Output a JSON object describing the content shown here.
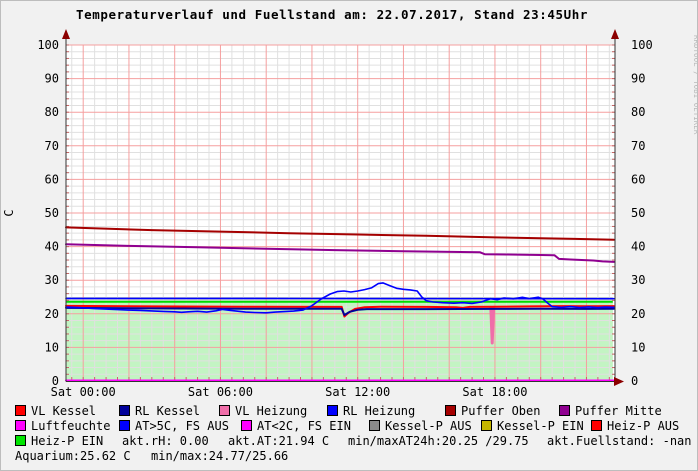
{
  "title": "Temperaturverlauf und Fuellstand am: 22.07.2017, Stand 23:45Uhr",
  "watermark": "RRDTOOL / TOBI OETIKER",
  "legend": {
    "rows": [
      {
        "items": [
          {
            "swatch": "#ff0000",
            "label": "VL Kessel"
          },
          {
            "swatch": "#00009a",
            "label": "RL Kessel"
          },
          {
            "swatch": "#f06ea9",
            "label": "VL Heizung"
          },
          {
            "swatch": "#0000ff",
            "label": "RL Heizung"
          },
          {
            "swatch": "#a50000",
            "label": "Puffer Oben"
          },
          {
            "swatch": "#8f0090",
            "label": "Puffer Mitte"
          }
        ]
      },
      {
        "items": [
          {
            "swatch": "#ff00ff",
            "label": "Luftfeuchte"
          },
          {
            "swatch": "#0000ff",
            "label": "AT>5C, FS AUS"
          },
          {
            "swatch": "#ff00ff",
            "label": "AT<2C, FS EIN"
          },
          {
            "swatch": "#8a8a8a",
            "label": "Kessel-P AUS"
          },
          {
            "swatch": "#c6b600",
            "label": "Kessel-P EIN"
          },
          {
            "swatch": "#ff0000",
            "label": "Heiz-P AUS"
          }
        ]
      },
      {
        "items": [
          {
            "swatch": "#00e400",
            "label": "Heiz-P EIN"
          },
          {
            "label": "akt.rH: 0.00"
          },
          {
            "label": "akt.AT:21.94 C"
          },
          {
            "label": "min/maxAT24h:20.25 /29.75"
          },
          {
            "label": "akt.Fuellstand: -nan"
          }
        ]
      },
      {
        "items": [
          {
            "label": "Aquarium:25.62 C"
          },
          {
            "label": "min/max:24.77/25.66"
          }
        ]
      }
    ]
  },
  "chart_data": {
    "type": "line",
    "title": "Temperaturverlauf und Fuellstand am: 22.07.2017, Stand 23:45Uhr",
    "ylabel": "C",
    "ylim": [
      0,
      100
    ],
    "y_major_step": 10,
    "y_minor_step": 2,
    "x_window_hours": [
      -0.75,
      23.25
    ],
    "x_major_step_hours": 2,
    "x_minor_step_hours": 0.5,
    "grid": true,
    "legend_position": "bottom",
    "x_tick_labels": [
      {
        "t": 0,
        "label": "Sat 00:00"
      },
      {
        "t": 6,
        "label": "Sat 06:00"
      },
      {
        "t": 12,
        "label": "Sat 12:00"
      },
      {
        "t": 18,
        "label": "Sat 18:00"
      }
    ],
    "areas": [
      {
        "name": "Kessel-P AUS",
        "color": "#cdd6cd",
        "top": 25.0,
        "x": [
          -0.75,
          23.15
        ]
      },
      {
        "name": "Heiz-P EIN",
        "color": "#c3f4c3",
        "top": 23.6,
        "x": [
          -0.75,
          23.15
        ],
        "edge_color": "#00dc00",
        "edge_width": 2
      }
    ],
    "series": [
      {
        "name": "Luftfeuchte",
        "color": "#ff00ff",
        "width": 2,
        "points": [
          [
            -0.75,
            0.15
          ],
          [
            23.2,
            0.15
          ]
        ]
      },
      {
        "name": "VL Heizung",
        "color": "#f06ea9",
        "width": 3,
        "points": [
          [
            17.82,
            21.9
          ],
          [
            17.88,
            11.3
          ],
          [
            17.94,
            21.9
          ]
        ]
      },
      {
        "name": "RL Heizung",
        "color": "#0000ff",
        "width": 1.6,
        "points": [
          [
            -0.75,
            24.58
          ],
          [
            10,
            24.55
          ],
          [
            23.2,
            24.5
          ]
        ]
      },
      {
        "name": "VL Kessel",
        "color": "#ff0000",
        "width": 2,
        "points": [
          [
            -0.75,
            22.35
          ],
          [
            3,
            22.2
          ],
          [
            7,
            22.1
          ],
          [
            11.3,
            22.05
          ],
          [
            11.42,
            19.2
          ],
          [
            11.6,
            20.3
          ],
          [
            11.9,
            21.5
          ],
          [
            12.3,
            21.95
          ],
          [
            13,
            22.1
          ],
          [
            15,
            22.05
          ],
          [
            16.3,
            21.95
          ],
          [
            16.6,
            21.75
          ],
          [
            16.9,
            22.05
          ],
          [
            18,
            22.1
          ],
          [
            19.5,
            22.2
          ],
          [
            21,
            22.3
          ],
          [
            22,
            22.25
          ],
          [
            23.2,
            22.3
          ]
        ]
      },
      {
        "name": "RL Kessel",
        "color": "#00009a",
        "width": 2,
        "points": [
          [
            -0.75,
            21.75
          ],
          [
            3,
            21.6
          ],
          [
            7,
            21.5
          ],
          [
            11.3,
            21.5
          ],
          [
            11.42,
            19.65
          ],
          [
            11.65,
            20.6
          ],
          [
            12,
            21.2
          ],
          [
            12.4,
            21.4
          ],
          [
            15,
            21.4
          ],
          [
            18,
            21.45
          ],
          [
            20,
            21.5
          ],
          [
            22,
            21.45
          ],
          [
            23.2,
            21.5
          ]
        ]
      },
      {
        "name": "AT>5C, FS AUS",
        "color": "#0000ff",
        "width": 1.6,
        "points": [
          [
            -0.75,
            22.0
          ],
          [
            0,
            21.8
          ],
          [
            0.5,
            21.55
          ],
          [
            1,
            21.4
          ],
          [
            1.5,
            21.25
          ],
          [
            2,
            21.1
          ],
          [
            2.5,
            21.0
          ],
          [
            3,
            20.85
          ],
          [
            3.5,
            20.7
          ],
          [
            4,
            20.6
          ],
          [
            4.3,
            20.45
          ],
          [
            4.6,
            20.6
          ],
          [
            5,
            20.75
          ],
          [
            5.4,
            20.5
          ],
          [
            5.8,
            20.9
          ],
          [
            6.1,
            21.3
          ],
          [
            6.4,
            21.05
          ],
          [
            6.7,
            20.8
          ],
          [
            7.1,
            20.5
          ],
          [
            7.5,
            20.4
          ],
          [
            8,
            20.3
          ],
          [
            8.4,
            20.5
          ],
          [
            8.8,
            20.65
          ],
          [
            9.2,
            20.8
          ],
          [
            9.6,
            21.1
          ],
          [
            10,
            22.4
          ],
          [
            10.4,
            24.4
          ],
          [
            10.8,
            25.9
          ],
          [
            11.1,
            26.6
          ],
          [
            11.4,
            26.8
          ],
          [
            11.7,
            26.5
          ],
          [
            12,
            26.8
          ],
          [
            12.3,
            27.2
          ],
          [
            12.6,
            27.7
          ],
          [
            12.9,
            29.0
          ],
          [
            13.1,
            29.2
          ],
          [
            13.4,
            28.4
          ],
          [
            13.7,
            27.6
          ],
          [
            14,
            27.3
          ],
          [
            14.3,
            27.1
          ],
          [
            14.6,
            26.8
          ],
          [
            14.8,
            25.0
          ],
          [
            15,
            23.9
          ],
          [
            15.3,
            23.5
          ],
          [
            15.7,
            23.3
          ],
          [
            16.2,
            23.15
          ],
          [
            16.6,
            23.3
          ],
          [
            17,
            23.1
          ],
          [
            17.4,
            23.5
          ],
          [
            17.8,
            24.5
          ],
          [
            18.1,
            24.2
          ],
          [
            18.4,
            24.7
          ],
          [
            18.8,
            24.45
          ],
          [
            19.2,
            24.9
          ],
          [
            19.5,
            24.5
          ],
          [
            19.9,
            24.95
          ],
          [
            20.1,
            24.4
          ],
          [
            20.3,
            23.2
          ],
          [
            20.5,
            22.15
          ],
          [
            20.9,
            21.9
          ],
          [
            21.3,
            22.15
          ],
          [
            21.7,
            21.85
          ],
          [
            22.1,
            22.05
          ],
          [
            22.5,
            21.85
          ],
          [
            22.8,
            22.0
          ],
          [
            23.2,
            21.94
          ]
        ]
      },
      {
        "name": "Puffer Oben",
        "color": "#a50000",
        "width": 2,
        "points": [
          [
            -0.75,
            45.7
          ],
          [
            3,
            44.9
          ],
          [
            6,
            44.45
          ],
          [
            9,
            44.0
          ],
          [
            12,
            43.6
          ],
          [
            15,
            43.2
          ],
          [
            18,
            42.75
          ],
          [
            20,
            42.5
          ],
          [
            21.5,
            42.3
          ],
          [
            23.2,
            42.05
          ]
        ]
      },
      {
        "name": "Puffer Mitte",
        "color": "#8f0090",
        "width": 2,
        "points": [
          [
            -0.75,
            40.7
          ],
          [
            2,
            40.2
          ],
          [
            5,
            39.8
          ],
          [
            8,
            39.35
          ],
          [
            11,
            38.95
          ],
          [
            14,
            38.6
          ],
          [
            16.5,
            38.4
          ],
          [
            17.35,
            38.3
          ],
          [
            17.55,
            37.75
          ],
          [
            18.5,
            37.65
          ],
          [
            20,
            37.5
          ],
          [
            20.6,
            37.45
          ],
          [
            20.8,
            36.35
          ],
          [
            21.3,
            36.15
          ],
          [
            22.3,
            35.85
          ],
          [
            22.7,
            35.6
          ],
          [
            23.2,
            35.45
          ]
        ]
      }
    ],
    "annotations": {
      "akt_rH": "0.00",
      "akt_AT_C": "21.94",
      "minmax_AT_24h": "20.25 /29.75",
      "akt_Fuellstand": "-nan",
      "Aquarium_C": "25.62",
      "Aquarium_minmax": "24.77/25.66"
    }
  }
}
